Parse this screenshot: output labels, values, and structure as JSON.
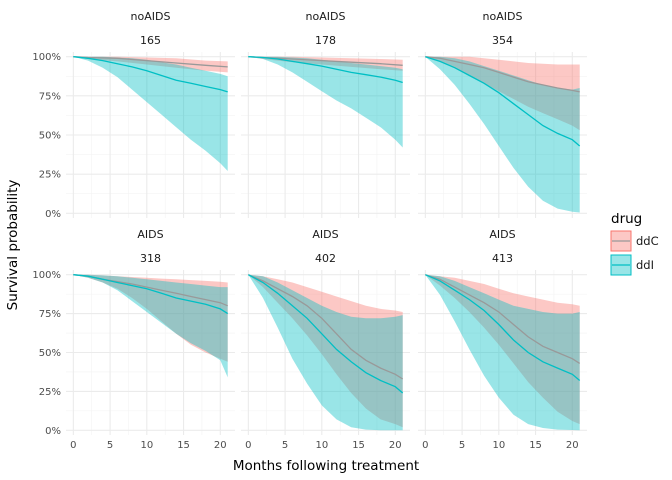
{
  "chart_data": {
    "type": "area",
    "facet_layout": "2 rows x 3 columns",
    "xlabel": "Months following treatment",
    "ylabel": "Survival probability",
    "xlim": [
      -1,
      22
    ],
    "ylim": [
      -0.03,
      1.03
    ],
    "x_ticks": [
      "0",
      "5",
      "10",
      "15",
      "20"
    ],
    "y_ticks": [
      "0%",
      "25%",
      "50%",
      "75%",
      "100%"
    ],
    "grid": true,
    "legend": {
      "title": "drug",
      "position": "right",
      "entries": [
        {
          "label": "ddC",
          "fill": "#F8766D",
          "line": "#999999"
        },
        {
          "label": "ddI",
          "fill": "#00BFC4",
          "line": "#00BFC4"
        }
      ]
    },
    "colors": {
      "ddC_fill": "#F8766D",
      "ddI_fill": "#00BFC4",
      "ddC_line": "#999999",
      "ddI_line": "#00BFC4",
      "grid": "#ebebeb"
    },
    "panels": [
      {
        "strip_1": "noAIDS",
        "strip_2": "165",
        "series": [
          {
            "name": "ddC",
            "x": [
              0,
              2,
              6,
              10,
              14,
              18,
              21
            ],
            "estimate": [
              1,
              0.995,
              0.99,
              0.975,
              0.96,
              0.945,
              0.935
            ],
            "lower": [
              1,
              0.985,
              0.97,
              0.95,
              0.93,
              0.91,
              0.9
            ],
            "upper": [
              1,
              1,
              1,
              0.995,
              0.99,
              0.975,
              0.97
            ]
          },
          {
            "name": "ddI",
            "x": [
              0,
              2,
              4,
              6,
              8,
              10,
              12,
              14,
              16,
              18,
              20,
              21
            ],
            "estimate": [
              1,
              0.99,
              0.975,
              0.955,
              0.935,
              0.91,
              0.88,
              0.85,
              0.83,
              0.81,
              0.79,
              0.775
            ],
            "lower": [
              1,
              0.975,
              0.93,
              0.87,
              0.79,
              0.71,
              0.63,
              0.55,
              0.47,
              0.4,
              0.32,
              0.27
            ],
            "upper": [
              1,
              1,
              1,
              0.995,
              0.99,
              0.98,
              0.965,
              0.95,
              0.93,
              0.91,
              0.89,
              0.875
            ]
          }
        ]
      },
      {
        "strip_1": "noAIDS",
        "strip_2": "178",
        "series": [
          {
            "name": "ddC",
            "x": [
              0,
              2,
              6,
              10,
              14,
              18,
              21
            ],
            "estimate": [
              1,
              0.995,
              0.985,
              0.975,
              0.965,
              0.955,
              0.945
            ],
            "lower": [
              1,
              0.985,
              0.965,
              0.95,
              0.935,
              0.92,
              0.91
            ],
            "upper": [
              1,
              1,
              1,
              0.995,
              0.99,
              0.985,
              0.98
            ]
          },
          {
            "name": "ddI",
            "x": [
              0,
              2,
              4,
              6,
              8,
              10,
              12,
              14,
              16,
              18,
              20,
              21
            ],
            "estimate": [
              1,
              0.995,
              0.985,
              0.97,
              0.955,
              0.94,
              0.92,
              0.9,
              0.885,
              0.87,
              0.85,
              0.835
            ],
            "lower": [
              1,
              0.985,
              0.95,
              0.9,
              0.84,
              0.78,
              0.72,
              0.67,
              0.61,
              0.55,
              0.47,
              0.42
            ],
            "upper": [
              1,
              1,
              1,
              0.995,
              0.99,
              0.98,
              0.97,
              0.96,
              0.95,
              0.94,
              0.93,
              0.92
            ]
          }
        ]
      },
      {
        "strip_1": "noAIDS",
        "strip_2": "354",
        "series": [
          {
            "name": "ddC",
            "x": [
              0,
              2,
              4,
              6,
              8,
              10,
              12,
              14,
              16,
              18,
              20,
              21
            ],
            "estimate": [
              1,
              0.99,
              0.97,
              0.95,
              0.93,
              0.9,
              0.87,
              0.84,
              0.82,
              0.8,
              0.785,
              0.775
            ],
            "lower": [
              1,
              0.97,
              0.93,
              0.88,
              0.83,
              0.78,
              0.73,
              0.68,
              0.64,
              0.6,
              0.56,
              0.53
            ],
            "upper": [
              1,
              1,
              1,
              1,
              0.99,
              0.98,
              0.97,
              0.96,
              0.955,
              0.95,
              0.95,
              0.95
            ]
          },
          {
            "name": "ddI",
            "x": [
              0,
              2,
              4,
              6,
              8,
              10,
              12,
              14,
              16,
              18,
              20,
              21
            ],
            "estimate": [
              1,
              0.97,
              0.93,
              0.88,
              0.83,
              0.77,
              0.7,
              0.63,
              0.56,
              0.51,
              0.47,
              0.43
            ],
            "lower": [
              1,
              0.92,
              0.82,
              0.7,
              0.57,
              0.43,
              0.29,
              0.17,
              0.08,
              0.03,
              0.01,
              0.005
            ],
            "upper": [
              1,
              1,
              0.99,
              0.97,
              0.94,
              0.91,
              0.88,
              0.85,
              0.82,
              0.8,
              0.79,
              0.8
            ]
          }
        ]
      },
      {
        "strip_1": "AIDS",
        "strip_2": "318",
        "series": [
          {
            "name": "ddC",
            "x": [
              0,
              2,
              4,
              6,
              8,
              10,
              12,
              14,
              16,
              18,
              20,
              21
            ],
            "estimate": [
              1,
              0.99,
              0.97,
              0.955,
              0.94,
              0.92,
              0.9,
              0.88,
              0.86,
              0.84,
              0.82,
              0.8
            ],
            "lower": [
              1,
              0.98,
              0.95,
              0.91,
              0.85,
              0.78,
              0.7,
              0.62,
              0.55,
              0.5,
              0.46,
              0.44
            ],
            "upper": [
              1,
              1,
              0.995,
              0.99,
              0.985,
              0.98,
              0.975,
              0.97,
              0.965,
              0.96,
              0.955,
              0.95
            ]
          },
          {
            "name": "ddI",
            "x": [
              0,
              2,
              4,
              6,
              8,
              10,
              12,
              14,
              16,
              18,
              20,
              21
            ],
            "estimate": [
              1,
              0.99,
              0.97,
              0.95,
              0.93,
              0.91,
              0.88,
              0.85,
              0.83,
              0.81,
              0.78,
              0.75
            ],
            "lower": [
              1,
              0.98,
              0.95,
              0.9,
              0.83,
              0.76,
              0.69,
              0.62,
              0.56,
              0.51,
              0.45,
              0.34
            ],
            "upper": [
              1,
              1,
              0.995,
              0.99,
              0.98,
              0.97,
              0.96,
              0.95,
              0.94,
              0.93,
              0.92,
              0.92
            ]
          }
        ]
      },
      {
        "strip_1": "AIDS",
        "strip_2": "402",
        "series": [
          {
            "name": "ddC",
            "x": [
              0,
              2,
              4,
              6,
              8,
              10,
              12,
              14,
              16,
              18,
              20,
              21
            ],
            "estimate": [
              1,
              0.96,
              0.91,
              0.86,
              0.8,
              0.72,
              0.62,
              0.52,
              0.45,
              0.4,
              0.36,
              0.33
            ],
            "lower": [
              1,
              0.92,
              0.82,
              0.72,
              0.61,
              0.49,
              0.36,
              0.24,
              0.14,
              0.07,
              0.04,
              0.02
            ],
            "upper": [
              1,
              0.99,
              0.97,
              0.95,
              0.92,
              0.89,
              0.86,
              0.83,
              0.8,
              0.78,
              0.77,
              0.76
            ]
          },
          {
            "name": "ddI",
            "x": [
              0,
              2,
              4,
              6,
              8,
              10,
              12,
              14,
              16,
              18,
              20,
              21
            ],
            "estimate": [
              1,
              0.95,
              0.88,
              0.8,
              0.72,
              0.62,
              0.52,
              0.44,
              0.37,
              0.32,
              0.28,
              0.24
            ],
            "lower": [
              1,
              0.85,
              0.66,
              0.46,
              0.3,
              0.16,
              0.07,
              0.02,
              0.005,
              0,
              0,
              0
            ],
            "upper": [
              1,
              0.99,
              0.95,
              0.9,
              0.85,
              0.8,
              0.76,
              0.73,
              0.72,
              0.72,
              0.73,
              0.74
            ]
          }
        ]
      },
      {
        "strip_1": "AIDS",
        "strip_2": "413",
        "series": [
          {
            "name": "ddC",
            "x": [
              0,
              2,
              4,
              6,
              8,
              10,
              12,
              14,
              16,
              18,
              20,
              21
            ],
            "estimate": [
              1,
              0.97,
              0.92,
              0.87,
              0.82,
              0.76,
              0.68,
              0.6,
              0.54,
              0.5,
              0.46,
              0.43
            ],
            "lower": [
              1,
              0.93,
              0.85,
              0.76,
              0.66,
              0.55,
              0.43,
              0.31,
              0.21,
              0.12,
              0.06,
              0.04
            ],
            "upper": [
              1,
              0.99,
              0.98,
              0.96,
              0.94,
              0.91,
              0.88,
              0.86,
              0.84,
              0.82,
              0.81,
              0.8
            ]
          },
          {
            "name": "ddI",
            "x": [
              0,
              2,
              4,
              6,
              8,
              10,
              12,
              14,
              16,
              18,
              20,
              21
            ],
            "estimate": [
              1,
              0.96,
              0.9,
              0.84,
              0.77,
              0.68,
              0.58,
              0.5,
              0.44,
              0.4,
              0.36,
              0.32
            ],
            "lower": [
              1,
              0.87,
              0.7,
              0.52,
              0.35,
              0.21,
              0.1,
              0.04,
              0.015,
              0.005,
              0.002,
              0
            ],
            "upper": [
              1,
              0.99,
              0.96,
              0.92,
              0.88,
              0.84,
              0.8,
              0.78,
              0.76,
              0.75,
              0.75,
              0.76
            ]
          }
        ]
      }
    ]
  }
}
